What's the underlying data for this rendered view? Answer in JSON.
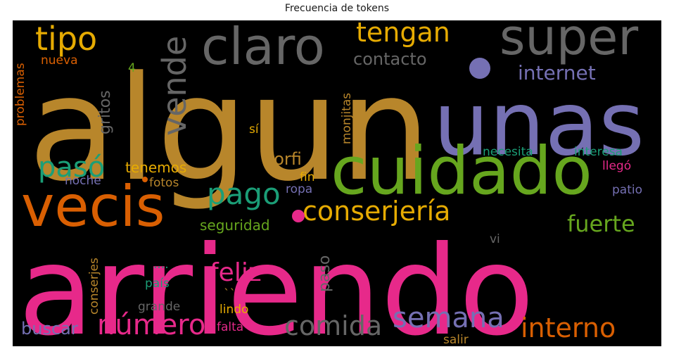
{
  "chart_data": {
    "type": "wordcloud",
    "title": "Frecuencia de tokens",
    "background": "#000000",
    "palette": "Dark2",
    "words": [
      {
        "text": "algun",
        "color": "#b8862b"
      },
      {
        "text": "unas",
        "color": "#7570b3"
      },
      {
        "text": "arriendo",
        "color": "#e7298a"
      },
      {
        "text": "vecis",
        "color": "#d95f02"
      },
      {
        "text": "cuidado",
        "color": "#66a61e"
      },
      {
        "text": "super",
        "color": "#666666"
      },
      {
        "text": "claro",
        "color": "#666666"
      },
      {
        "text": "conserjería",
        "color": "#e6ab02"
      },
      {
        "text": "tipo",
        "color": "#e6ab02"
      },
      {
        "text": "tengan",
        "color": "#e6ab02"
      },
      {
        "text": "pago",
        "color": "#1b9e77"
      },
      {
        "text": "pasó",
        "color": "#1b9e77"
      },
      {
        "text": "vende",
        "color": "#666666"
      },
      {
        "text": "número",
        "color": "#e7298a"
      },
      {
        "text": "semana",
        "color": "#7570b3"
      },
      {
        "text": "interno",
        "color": "#d95f02"
      },
      {
        "text": "comida",
        "color": "#666666"
      },
      {
        "text": "feliz",
        "color": "#e7298a"
      },
      {
        "text": "fuerte",
        "color": "#66a61e"
      },
      {
        "text": "internet",
        "color": "#7570b3"
      },
      {
        "text": "contacto",
        "color": "#666666"
      },
      {
        "text": "porfi",
        "color": "#b8862b"
      },
      {
        "text": "buscar",
        "color": "#7570b3"
      },
      {
        "text": "tenemos",
        "color": "#e6ab02"
      },
      {
        "text": "seguridad",
        "color": "#66a61e"
      },
      {
        "text": "necesita",
        "color": "#1b9e77"
      },
      {
        "text": "interesa",
        "color": "#1b9e77"
      },
      {
        "text": "gritos",
        "color": "#666666"
      },
      {
        "text": "paso",
        "color": "#666666"
      },
      {
        "text": "noche",
        "color": "#7570b3"
      },
      {
        "text": "fotos",
        "color": "#b8862b"
      },
      {
        "text": "ropa",
        "color": "#7570b3"
      },
      {
        "text": "fin",
        "color": "#e6ab02"
      },
      {
        "text": "patio",
        "color": "#7570b3"
      },
      {
        "text": "llegó",
        "color": "#e7298a"
      },
      {
        "text": "monjitas",
        "color": "#b8862b"
      },
      {
        "text": "nueva",
        "color": "#d95f02"
      },
      {
        "text": "problemas",
        "color": "#d95f02"
      },
      {
        "text": "conserjes",
        "color": "#b8862b"
      },
      {
        "text": "país",
        "color": "#1b9e77"
      },
      {
        "text": "grande",
        "color": "#666666"
      },
      {
        "text": "lindo",
        "color": "#e6ab02"
      },
      {
        "text": "falta",
        "color": "#e7298a"
      },
      {
        "text": "salir",
        "color": "#b8862b"
      },
      {
        "text": "sí",
        "color": "#e6ab02"
      },
      {
        "text": "vi",
        "color": "#666666"
      },
      {
        "text": "4",
        "color": "#66a61e"
      },
      {
        "text": "....",
        "color": "#1b9e77"
      },
      {
        "text": "``",
        "color": "#b8862b"
      }
    ],
    "dots": [
      {
        "name": "period-mark-large",
        "color": "#7570b3"
      },
      {
        "name": "period-mark-medium",
        "color": "#e7298a"
      },
      {
        "name": "period-mark-small",
        "color": "#d95f02"
      }
    ]
  }
}
